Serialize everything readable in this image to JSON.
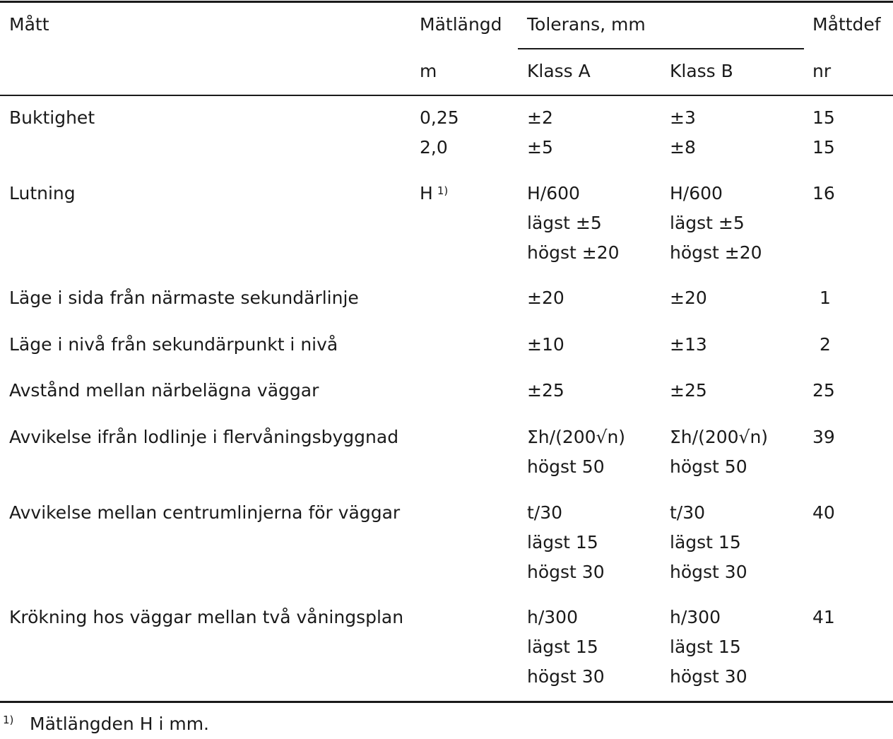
{
  "header": {
    "col_matt": "Mått",
    "col_length": "Mätlängd",
    "col_length_unit": "m",
    "col_tolerance": "Tolerans, mm",
    "col_class_a": "Klass A",
    "col_class_b": "Klass B",
    "col_def": "Måttdef",
    "col_def_unit": "nr"
  },
  "rows": [
    {
      "matt": "Buktighet",
      "length": [
        "0,25",
        "2,0"
      ],
      "a": [
        "±2",
        "±5"
      ],
      "b": [
        "±3",
        "±8"
      ],
      "nr": [
        "15",
        "15"
      ]
    },
    {
      "matt": "Lutning",
      "length": [
        "H"
      ],
      "length_sup": "1)",
      "a": [
        "H/600",
        "lägst ±5",
        "högst ±20"
      ],
      "b": [
        "H/600",
        "lägst ±5",
        "högst ±20"
      ],
      "nr": [
        "16"
      ]
    },
    {
      "matt": "Läge i sida från närmaste sekundärlinje",
      "length": [],
      "a": [
        "±20"
      ],
      "b": [
        "±20"
      ],
      "nr": [
        "1"
      ]
    },
    {
      "matt": "Läge i nivå från sekundärpunkt i nivå",
      "length": [],
      "a": [
        "±10"
      ],
      "b": [
        "±13"
      ],
      "nr": [
        "2"
      ]
    },
    {
      "matt": "Avstånd mellan närbelägna väggar",
      "length": [],
      "a": [
        "±25"
      ],
      "b": [
        "±25"
      ],
      "nr": [
        "25"
      ]
    },
    {
      "matt": "Avvikelse ifrån lodlinje i flervåningsbyggnad",
      "length": [],
      "a": [
        "Σh/(200√n)",
        "högst 50"
      ],
      "b": [
        "Σh/(200√n)",
        "högst 50"
      ],
      "nr": [
        "39"
      ]
    },
    {
      "matt": "Avvikelse mellan centrumlinjerna för väggar",
      "length": [],
      "a": [
        "t/30",
        "lägst 15",
        "högst 30"
      ],
      "b": [
        "t/30",
        "lägst 15",
        "högst 30"
      ],
      "nr": [
        "40"
      ]
    },
    {
      "matt": "Krökning hos väggar mellan två våningsplan",
      "length": [],
      "a": [
        "h/300",
        "lägst 15",
        "högst 30"
      ],
      "b": [
        "h/300",
        "lägst 15",
        "högst 30"
      ],
      "nr": [
        "41"
      ]
    }
  ],
  "footnote": {
    "mark": "1)",
    "text": "Mätlängden H i mm."
  }
}
